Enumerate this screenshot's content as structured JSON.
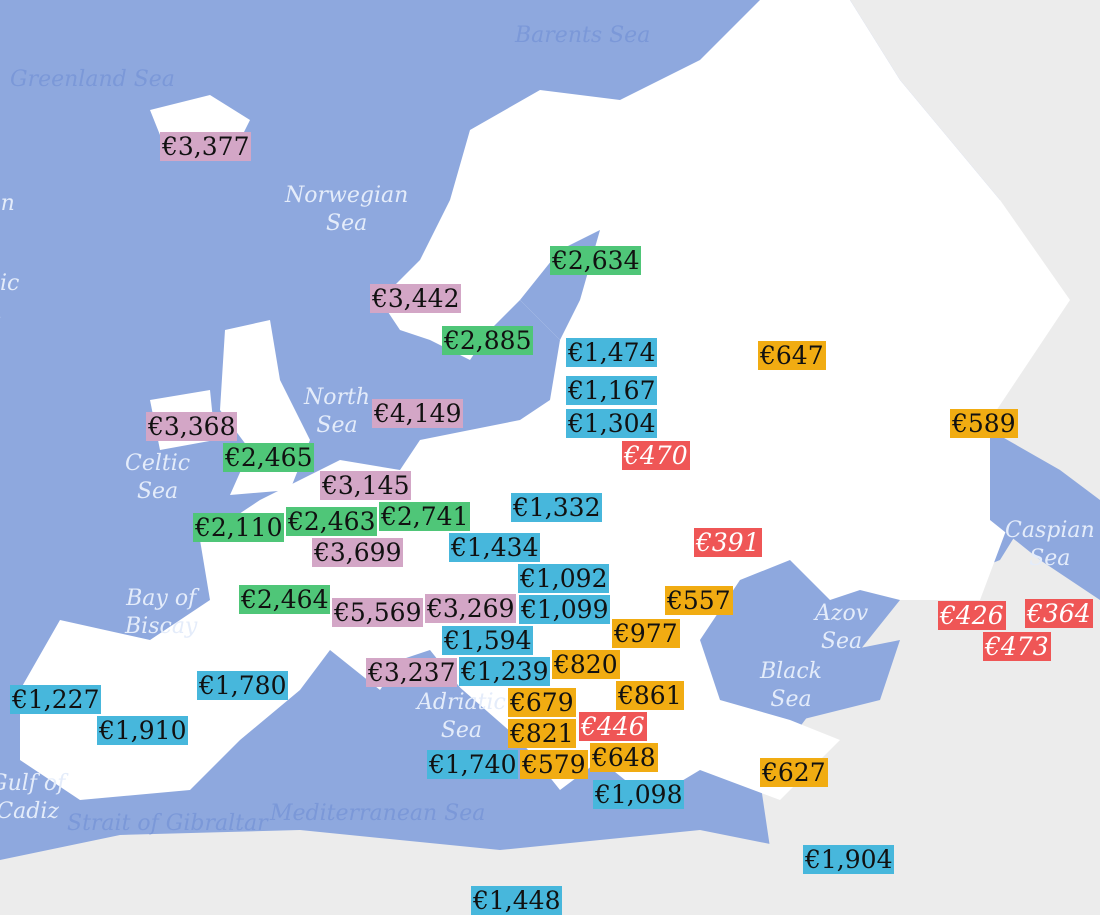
{
  "colors": {
    "sea": "#8ea8de",
    "land": "#ffffff",
    "outside": "#ececec",
    "pink": "#d3a6c6",
    "green": "#4fc678",
    "blue": "#47b7dc",
    "orange": "#f1ac12",
    "red": "#ef5656"
  },
  "seas": [
    "Barents Sea",
    "Greenland Sea",
    "Norwegian Sea",
    "North Sea",
    "Celtic Sea",
    "Bay of Biscay",
    "Adriatic Sea",
    "Black Sea",
    "Azov Sea",
    "Caspian Sea",
    "Mediterranean Sea",
    "Strait of Gibraltar",
    "Gulf of Cadiz",
    "rian a",
    "h tic n"
  ],
  "labels": [
    {
      "value": "€3,377",
      "color": "pink"
    },
    {
      "value": "€3,442",
      "color": "pink"
    },
    {
      "value": "€2,634",
      "color": "green"
    },
    {
      "value": "€2,885",
      "color": "green"
    },
    {
      "value": "€1,474",
      "color": "blue"
    },
    {
      "value": "€647",
      "color": "orange"
    },
    {
      "value": "€1,167",
      "color": "blue"
    },
    {
      "value": "€4,149",
      "color": "pink"
    },
    {
      "value": "€3,368",
      "color": "pink"
    },
    {
      "value": "€1,304",
      "color": "blue"
    },
    {
      "value": "€589",
      "color": "orange"
    },
    {
      "value": "€2,465",
      "color": "green"
    },
    {
      "value": "€470",
      "color": "red"
    },
    {
      "value": "€3,145",
      "color": "pink"
    },
    {
      "value": "€1,332",
      "color": "blue"
    },
    {
      "value": "€2,110",
      "color": "green"
    },
    {
      "value": "€2,463",
      "color": "green"
    },
    {
      "value": "€2,741",
      "color": "green"
    },
    {
      "value": "€391",
      "color": "red"
    },
    {
      "value": "€3,699",
      "color": "pink"
    },
    {
      "value": "€1,434",
      "color": "blue"
    },
    {
      "value": "€1,092",
      "color": "blue"
    },
    {
      "value": "€557",
      "color": "orange"
    },
    {
      "value": "€2,464",
      "color": "green"
    },
    {
      "value": "€5,569",
      "color": "pink"
    },
    {
      "value": "€3,269",
      "color": "pink"
    },
    {
      "value": "€1,099",
      "color": "blue"
    },
    {
      "value": "€426",
      "color": "red"
    },
    {
      "value": "€364",
      "color": "red"
    },
    {
      "value": "€977",
      "color": "orange"
    },
    {
      "value": "€1,594",
      "color": "blue"
    },
    {
      "value": "€473",
      "color": "red"
    },
    {
      "value": "€3,237",
      "color": "pink"
    },
    {
      "value": "€1,239",
      "color": "blue"
    },
    {
      "value": "€820",
      "color": "orange"
    },
    {
      "value": "€1,780",
      "color": "blue"
    },
    {
      "value": "€679",
      "color": "orange"
    },
    {
      "value": "€1,227",
      "color": "blue"
    },
    {
      "value": "€861",
      "color": "orange"
    },
    {
      "value": "€1,910",
      "color": "blue"
    },
    {
      "value": "€821",
      "color": "orange"
    },
    {
      "value": "€446",
      "color": "red"
    },
    {
      "value": "€1,740",
      "color": "blue"
    },
    {
      "value": "€648",
      "color": "orange"
    },
    {
      "value": "€579",
      "color": "orange"
    },
    {
      "value": "€627",
      "color": "orange"
    },
    {
      "value": "€1,098",
      "color": "blue"
    },
    {
      "value": "€1,904",
      "color": "blue"
    },
    {
      "value": "€1,448",
      "color": "blue"
    }
  ]
}
